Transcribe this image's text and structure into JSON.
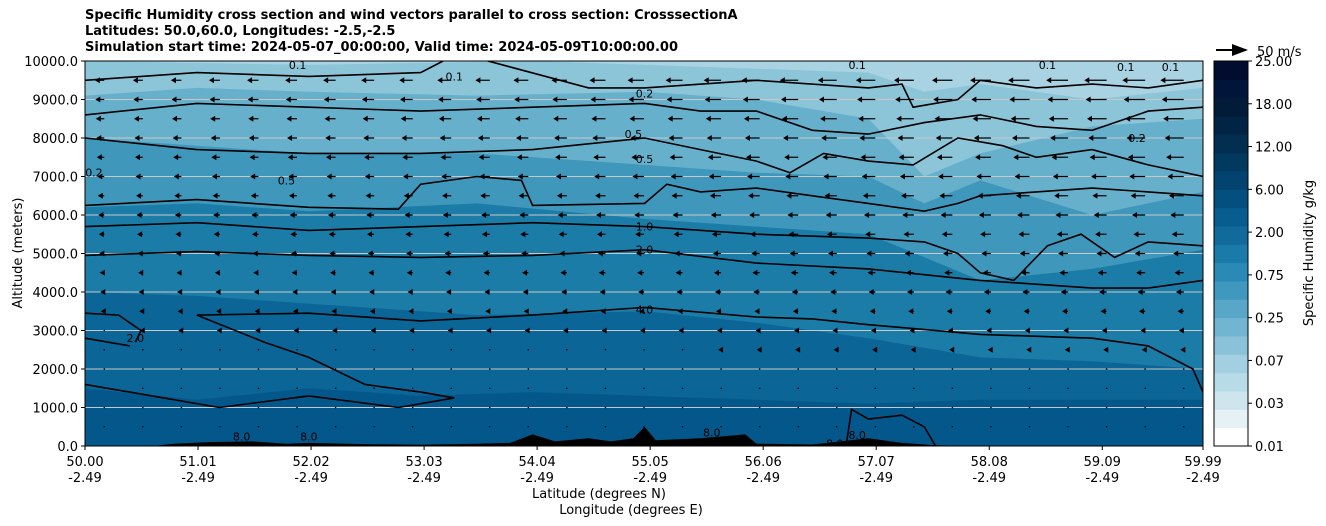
{
  "chart_data": {
    "type": "contour",
    "title_lines": [
      "Specific Humidity cross section and wind vectors parallel to cross section: CrosssectionA",
      "Latitudes: 50.0,60.0, Longitudes: -2.5,-2.5",
      "Simulation start time: 2024-05-07_00:00:00, Valid time: 2024-05-09T10:00:00.00"
    ],
    "ylabel": "Altitude (meters)",
    "xlabel_lat": "Latitude (degrees N)",
    "xlabel_lon": "Longitude (degrees E)",
    "ylim": [
      0,
      10000
    ],
    "xlim": [
      50.0,
      59.99
    ],
    "y_ticks": [
      0,
      1000,
      2000,
      3000,
      4000,
      5000,
      6000,
      7000,
      8000,
      9000,
      10000
    ],
    "y_tick_labels": [
      "0.0",
      "1000.0",
      "2000.0",
      "3000.0",
      "4000.0",
      "5000.0",
      "6000.0",
      "7000.0",
      "8000.0",
      "9000.0",
      "10000.0"
    ],
    "x_ticks": [
      {
        "lat": "50.00",
        "lon": "-2.49"
      },
      {
        "lat": "51.01",
        "lon": "-2.49"
      },
      {
        "lat": "52.02",
        "lon": "-2.49"
      },
      {
        "lat": "53.03",
        "lon": "-2.49"
      },
      {
        "lat": "54.04",
        "lon": "-2.49"
      },
      {
        "lat": "55.05",
        "lon": "-2.49"
      },
      {
        "lat": "56.06",
        "lon": "-2.49"
      },
      {
        "lat": "57.07",
        "lon": "-2.49"
      },
      {
        "lat": "58.08",
        "lon": "-2.49"
      },
      {
        "lat": "59.09",
        "lon": "-2.49"
      },
      {
        "lat": "59.99",
        "lon": "-2.49"
      }
    ],
    "colorbar": {
      "label": "Specific Humidity g/kg",
      "tick_labels": [
        "0.01",
        "0.03",
        "0.07",
        "0.25",
        "0.75",
        "2.00",
        "6.00",
        "12.00",
        "18.00",
        "25.00"
      ],
      "colors": [
        "#ffffff",
        "#e6f1f5",
        "#cfe5ee",
        "#b8dbe8",
        "#a2cfe1",
        "#8ac3d9",
        "#72b5d1",
        "#59a7c8",
        "#3f98be",
        "#2a8ab5",
        "#1a7aa8",
        "#106b9b",
        "#075d8e",
        "#03507f",
        "#02446f",
        "#01395f",
        "#022e50",
        "#022444",
        "#011b38",
        "#01143a",
        "#010c2e"
      ]
    },
    "wind_key": {
      "label": "50 m/s"
    },
    "contour_labels": [
      {
        "text": "0.1",
        "lat": 51.9,
        "alt": 9900
      },
      {
        "text": "0.1",
        "lat": 53.3,
        "alt": 9600
      },
      {
        "text": "0.1",
        "lat": 56.9,
        "alt": 9900
      },
      {
        "text": "0.1",
        "lat": 58.6,
        "alt": 9900
      },
      {
        "text": "0.1",
        "lat": 59.3,
        "alt": 9850
      },
      {
        "text": "0.1",
        "lat": 59.7,
        "alt": 9850
      },
      {
        "text": "0.2",
        "lat": 55.0,
        "alt": 9150
      },
      {
        "text": "0.2",
        "lat": 59.4,
        "alt": 8000
      },
      {
        "text": "0.2",
        "lat": 50.08,
        "alt": 7100
      },
      {
        "text": "0.5",
        "lat": 54.9,
        "alt": 8100
      },
      {
        "text": "0.5",
        "lat": 55.0,
        "alt": 7450
      },
      {
        "text": "0.5",
        "lat": 51.8,
        "alt": 6900
      },
      {
        "text": "1.0",
        "lat": 55.0,
        "alt": 5700
      },
      {
        "text": "2.0",
        "lat": 55.0,
        "alt": 5100
      },
      {
        "text": "4.0",
        "lat": 55.0,
        "alt": 3550
      },
      {
        "text": "2.0",
        "lat": 50.45,
        "alt": 2800
      },
      {
        "text": "8.0",
        "lat": 51.4,
        "alt": 250
      },
      {
        "text": "8.0",
        "lat": 52.0,
        "alt": 250
      },
      {
        "text": "8.0",
        "lat": 55.6,
        "alt": 350
      },
      {
        "text": "8.0",
        "lat": 56.7,
        "alt": 60
      },
      {
        "text": "8.0",
        "lat": 56.9,
        "alt": 280
      }
    ],
    "humidity_fill_levels": [
      {
        "value": 0.07,
        "alt_at_lat": [
          [
            50.0,
            10000
          ],
          [
            52.0,
            9900
          ],
          [
            54.0,
            10000
          ],
          [
            56.0,
            9800
          ],
          [
            57.0,
            9700
          ],
          [
            57.5,
            9200
          ],
          [
            58.0,
            9400
          ],
          [
            59.0,
            9000
          ],
          [
            59.99,
            9300
          ]
        ]
      },
      {
        "value": 0.25,
        "alt_at_lat": [
          [
            50.0,
            9100
          ],
          [
            51.0,
            9300
          ],
          [
            52.0,
            9200
          ],
          [
            53.5,
            9100
          ],
          [
            55.0,
            9200
          ],
          [
            56.0,
            9000
          ],
          [
            57.0,
            8500
          ],
          [
            57.5,
            7000
          ],
          [
            58.0,
            7600
          ],
          [
            59.0,
            8300
          ],
          [
            59.99,
            8500
          ]
        ]
      },
      {
        "value": 0.75,
        "alt_at_lat": [
          [
            50.0,
            8000
          ],
          [
            51.0,
            7800
          ],
          [
            52.0,
            7600
          ],
          [
            53.5,
            7600
          ],
          [
            55.0,
            7300
          ],
          [
            56.0,
            7100
          ],
          [
            57.0,
            7000
          ],
          [
            57.5,
            6300
          ],
          [
            58.0,
            6900
          ],
          [
            59.0,
            6000
          ],
          [
            59.99,
            6600
          ]
        ]
      },
      {
        "value": 2.0,
        "alt_at_lat": [
          [
            50.0,
            6200
          ],
          [
            51.0,
            6300
          ],
          [
            52.0,
            6100
          ],
          [
            53.5,
            6300
          ],
          [
            55.0,
            5900
          ],
          [
            56.0,
            5700
          ],
          [
            57.0,
            5500
          ],
          [
            58.0,
            4300
          ],
          [
            59.0,
            4600
          ],
          [
            59.99,
            5100
          ]
        ]
      },
      {
        "value": 6.0,
        "alt_at_lat": [
          [
            50.0,
            4000
          ],
          [
            51.0,
            3900
          ],
          [
            52.0,
            3700
          ],
          [
            53.5,
            3400
          ],
          [
            55.0,
            3500
          ],
          [
            56.0,
            3200
          ],
          [
            57.0,
            2800
          ],
          [
            58.0,
            2300
          ],
          [
            59.0,
            2200
          ],
          [
            59.99,
            2000
          ]
        ]
      },
      {
        "value": 12.0,
        "alt_at_lat": [
          [
            50.0,
            1500
          ],
          [
            51.0,
            1200
          ],
          [
            52.0,
            1500
          ],
          [
            53.0,
            1300
          ],
          [
            54.0,
            1400
          ],
          [
            55.0,
            1300
          ],
          [
            56.0,
            1200
          ],
          [
            57.0,
            1100
          ],
          [
            58.0,
            1200
          ],
          [
            59.0,
            1200
          ],
          [
            59.99,
            1200
          ]
        ]
      }
    ],
    "contours": [
      {
        "value": "4.0",
        "points": [
          [
            51.0,
            3400
          ],
          [
            52.0,
            3450
          ],
          [
            53.0,
            3250
          ],
          [
            54.0,
            3400
          ],
          [
            55.0,
            3600
          ],
          [
            56.0,
            3350
          ],
          [
            56.5,
            3300
          ],
          [
            57.0,
            3150
          ],
          [
            58.0,
            2900
          ],
          [
            59.0,
            2800
          ],
          [
            59.5,
            2600
          ],
          [
            59.9,
            2000
          ],
          [
            59.99,
            1400
          ]
        ]
      },
      {
        "value": "1.0",
        "points": [
          [
            50.0,
            5700
          ],
          [
            51.0,
            5800
          ],
          [
            52.0,
            5600
          ],
          [
            53.0,
            5700
          ],
          [
            54.0,
            5800
          ],
          [
            55.0,
            5700
          ],
          [
            56.0,
            5500
          ],
          [
            57.0,
            5400
          ],
          [
            57.5,
            5300
          ],
          [
            57.8,
            5000
          ],
          [
            58.0,
            4500
          ],
          [
            58.3,
            4300
          ],
          [
            58.6,
            5200
          ],
          [
            58.9,
            5500
          ],
          [
            59.2,
            4900
          ],
          [
            59.5,
            5300
          ],
          [
            59.99,
            5200
          ]
        ]
      },
      {
        "value": "2.0",
        "points": [
          [
            50.0,
            4950
          ],
          [
            51.0,
            5050
          ],
          [
            52.0,
            4950
          ],
          [
            53.0,
            4900
          ],
          [
            54.0,
            4950
          ],
          [
            55.0,
            5100
          ],
          [
            56.0,
            4750
          ],
          [
            57.0,
            4600
          ],
          [
            58.0,
            4300
          ],
          [
            59.0,
            4100
          ],
          [
            59.5,
            4100
          ],
          [
            59.99,
            4300
          ]
        ]
      },
      {
        "value": "0.5",
        "points": [
          [
            50.0,
            6250
          ],
          [
            51.0,
            6400
          ],
          [
            52.0,
            6200
          ],
          [
            52.8,
            6150
          ],
          [
            53.0,
            6800
          ],
          [
            53.5,
            7000
          ],
          [
            53.9,
            6900
          ],
          [
            54.0,
            6250
          ],
          [
            55.0,
            6300
          ],
          [
            55.2,
            6800
          ],
          [
            55.5,
            6600
          ],
          [
            56.0,
            6700
          ],
          [
            56.5,
            6500
          ],
          [
            57.0,
            6300
          ],
          [
            57.5,
            6100
          ],
          [
            57.8,
            6300
          ],
          [
            58.0,
            6500
          ],
          [
            58.5,
            6600
          ],
          [
            59.0,
            6700
          ],
          [
            59.5,
            6600
          ],
          [
            59.99,
            6500
          ]
        ]
      },
      {
        "value": "0.2",
        "points": [
          [
            50.0,
            8000
          ],
          [
            51.0,
            7700
          ],
          [
            52.0,
            7600
          ],
          [
            53.0,
            7600
          ],
          [
            54.0,
            7700
          ],
          [
            55.0,
            8000
          ],
          [
            55.5,
            7700
          ],
          [
            56.0,
            7400
          ],
          [
            56.3,
            7100
          ],
          [
            56.6,
            7600
          ],
          [
            57.0,
            7400
          ],
          [
            57.4,
            7300
          ],
          [
            57.8,
            8000
          ],
          [
            58.2,
            7800
          ],
          [
            58.5,
            7500
          ],
          [
            59.0,
            7700
          ],
          [
            59.5,
            7300
          ],
          [
            59.99,
            7000
          ]
        ]
      },
      {
        "value": "0.1",
        "points": [
          [
            50.0,
            8600
          ],
          [
            51.0,
            8900
          ],
          [
            52.0,
            8800
          ],
          [
            53.0,
            8700
          ],
          [
            54.0,
            8800
          ],
          [
            55.0,
            8900
          ],
          [
            55.5,
            8700
          ],
          [
            56.0,
            8700
          ],
          [
            56.5,
            8200
          ],
          [
            57.0,
            8100
          ],
          [
            57.5,
            8400
          ],
          [
            58.0,
            8600
          ],
          [
            58.5,
            8300
          ],
          [
            59.0,
            8200
          ],
          [
            59.5,
            8700
          ],
          [
            59.99,
            8800
          ]
        ]
      },
      {
        "value": "0.05",
        "points": [
          [
            50.0,
            9500
          ],
          [
            51.0,
            9700
          ],
          [
            52.0,
            9600
          ],
          [
            53.0,
            9700
          ],
          [
            53.2,
            10000
          ]
        ]
      },
      {
        "value": "0.05b",
        "points": [
          [
            53.6,
            10000
          ],
          [
            54.5,
            9300
          ],
          [
            55.0,
            9300
          ],
          [
            56.0,
            9500
          ],
          [
            57.0,
            9300
          ],
          [
            57.3,
            9400
          ],
          [
            57.4,
            8800
          ],
          [
            57.8,
            9000
          ],
          [
            58.0,
            9500
          ],
          [
            58.5,
            9300
          ],
          [
            59.0,
            9400
          ],
          [
            59.5,
            9300
          ],
          [
            59.99,
            9500
          ]
        ]
      },
      {
        "value": "2.0b",
        "points": [
          [
            50.0,
            3450
          ],
          [
            50.3,
            3400
          ],
          [
            50.5,
            3000
          ],
          [
            50.45,
            2700
          ]
        ]
      },
      {
        "value": "2.0c",
        "points": [
          [
            50.0,
            2800
          ],
          [
            50.4,
            2600
          ]
        ]
      },
      {
        "value": "8.0",
        "points": [
          [
            51.0,
            3400
          ],
          [
            51.6,
            2700
          ],
          [
            52.0,
            2300
          ],
          [
            52.5,
            1600
          ],
          [
            53.0,
            1400
          ],
          [
            53.3,
            1250
          ],
          [
            52.8,
            1000
          ],
          [
            52.0,
            1300
          ],
          [
            51.2,
            1000
          ],
          [
            50.6,
            1300
          ],
          [
            50.0,
            1600
          ]
        ]
      },
      {
        "value": "8.0b",
        "points": [
          [
            56.8,
            0
          ],
          [
            56.85,
            950
          ],
          [
            57.0,
            700
          ],
          [
            57.3,
            800
          ],
          [
            57.5,
            500
          ],
          [
            57.6,
            0
          ]
        ]
      }
    ],
    "terrain_profile": [
      [
        50.0,
        0
      ],
      [
        50.6,
        0
      ],
      [
        50.8,
        60
      ],
      [
        51.1,
        100
      ],
      [
        51.5,
        120
      ],
      [
        51.8,
        60
      ],
      [
        52.0,
        80
      ],
      [
        52.5,
        50
      ],
      [
        53.0,
        30
      ],
      [
        53.5,
        60
      ],
      [
        53.8,
        80
      ],
      [
        54.0,
        300
      ],
      [
        54.2,
        120
      ],
      [
        54.5,
        200
      ],
      [
        54.7,
        120
      ],
      [
        54.9,
        200
      ],
      [
        55.0,
        500
      ],
      [
        55.1,
        150
      ],
      [
        55.5,
        200
      ],
      [
        55.9,
        300
      ],
      [
        56.0,
        60
      ],
      [
        56.5,
        40
      ],
      [
        57.0,
        200
      ],
      [
        57.3,
        80
      ],
      [
        57.6,
        20
      ],
      [
        58.0,
        0
      ],
      [
        59.99,
        0
      ]
    ]
  }
}
